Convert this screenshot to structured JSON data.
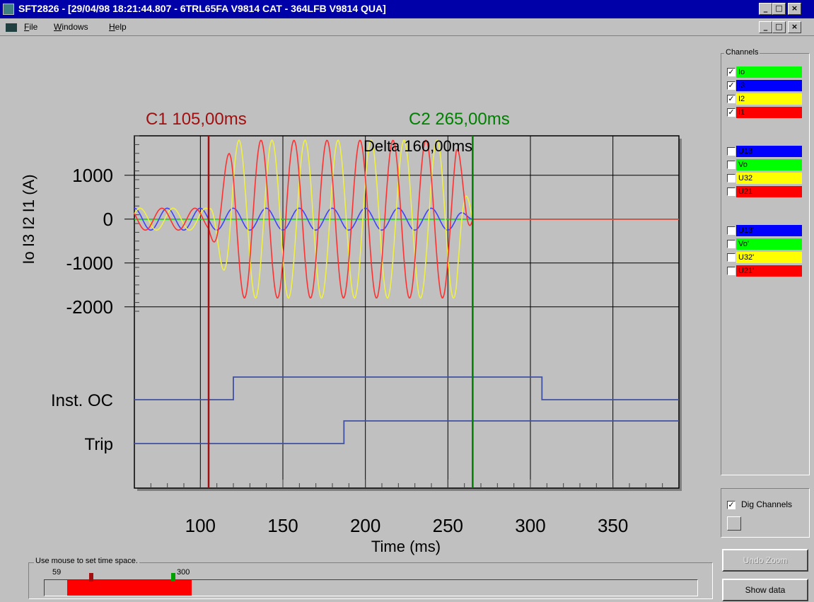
{
  "window": {
    "title": "SFT2826 - [29/04/98 18:21:44.807 -  6TRL65FA V9814 CAT - 364LFB   V9814 QUA]",
    "controls": [
      "_",
      "□",
      "×"
    ],
    "child_controls": [
      "_",
      "□",
      "×"
    ]
  },
  "menu": {
    "items": [
      {
        "key": "F",
        "rest": "ile"
      },
      {
        "key": "W",
        "rest": "indows"
      },
      {
        "key": "H",
        "rest": "elp"
      }
    ]
  },
  "chart_data": {
    "type": "line",
    "xlabel": "Time (ms)",
    "ylabel": "Io I3 I2 I1 (A)",
    "xlim": [
      60,
      390
    ],
    "ylim": [
      -2100,
      1900
    ],
    "x_ticks": [
      100,
      150,
      200,
      250,
      300,
      350
    ],
    "y_ticks": [
      1000,
      0,
      -1000,
      -2000
    ],
    "grid": true,
    "cursors": [
      {
        "label": "C1 105,00ms",
        "x": 105,
        "color": "#a01010"
      },
      {
        "label": "C2 265,00ms",
        "x": 265,
        "color": "#008000"
      }
    ],
    "delta_label": "Delta 160,00ms",
    "series": [
      {
        "name": "Io",
        "color": "#00e000",
        "prefault_amp": 0,
        "fault_amp": 0,
        "period_ms": 20,
        "phase": 0
      },
      {
        "name": "I3",
        "color": "#4040ff",
        "prefault_amp": 250,
        "fault_amp": 250,
        "period_ms": 20,
        "phase": 1.6
      },
      {
        "name": "I2",
        "color": "#f0f040",
        "prefault_amp": 250,
        "fault_amp": 1800,
        "period_ms": 20,
        "phase": 0.5
      },
      {
        "name": "I1",
        "color": "#ff3030",
        "prefault_amp": 250,
        "fault_amp": 1800,
        "period_ms": 20,
        "phase": 2.6
      }
    ],
    "fault_start_ms": 105,
    "fault_end_ms": 265,
    "digital_channels": [
      {
        "name": "Inst. OC",
        "transitions": [
          {
            "x": 120,
            "state": 1
          },
          {
            "x": 307,
            "state": 0
          }
        ]
      },
      {
        "name": "Trip",
        "transitions": [
          {
            "x": 187,
            "state": 1
          }
        ]
      }
    ],
    "digital_color": "#4050a0"
  },
  "channels_panel": {
    "title": "Channels",
    "groups": [
      [
        {
          "label": "Io",
          "checked": true,
          "color": "#00ff00"
        },
        {
          "label": "I3",
          "checked": true,
          "color": "#0000ff"
        },
        {
          "label": "I2",
          "checked": true,
          "color": "#ffff00"
        },
        {
          "label": "I1",
          "checked": true,
          "color": "#ff0000"
        }
      ],
      [
        {
          "label": "U13",
          "checked": false,
          "color": "#0000ff"
        },
        {
          "label": "Vo",
          "checked": false,
          "color": "#00ff00"
        },
        {
          "label": "U32",
          "checked": false,
          "color": "#ffff00"
        },
        {
          "label": "U21",
          "checked": false,
          "color": "#ff0000"
        }
      ],
      [
        {
          "label": "U13'",
          "checked": false,
          "color": "#0000ff"
        },
        {
          "label": "Vo'",
          "checked": false,
          "color": "#00ff00"
        },
        {
          "label": "U32'",
          "checked": false,
          "color": "#ffff00"
        },
        {
          "label": "U21'",
          "checked": false,
          "color": "#ff0000"
        }
      ]
    ],
    "checkmark": "✓"
  },
  "dig_channels": {
    "label": "Dig Channels",
    "checked": true
  },
  "buttons": {
    "undo_zoom": "Undo Zoom",
    "show_data": "Show data"
  },
  "time_space": {
    "title": "Use mouse to set time space.",
    "min": "59",
    "max": "300",
    "range_min_ms": 59,
    "range_max_ms": 300,
    "selection_color": "#ff0000",
    "markers": [
      {
        "x": 105,
        "color": "#a01010"
      },
      {
        "x": 265,
        "color": "#00a000"
      }
    ]
  }
}
